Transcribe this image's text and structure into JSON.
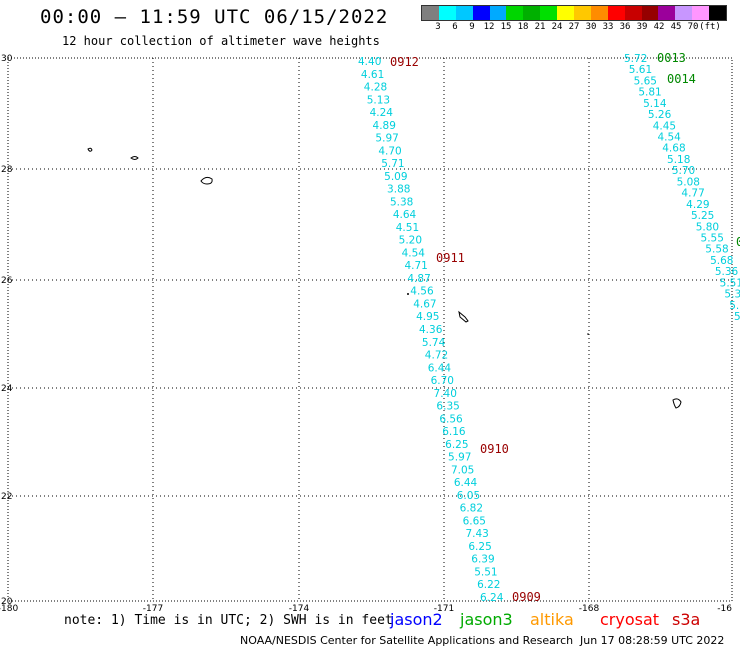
{
  "header": {
    "title": "00:00 — 11:59 UTC 06/15/2022",
    "subtitle": "12 hour collection of altimeter wave heights"
  },
  "legend": {
    "colors": [
      "#7f7f7f",
      "#00ffff",
      "#00c8ff",
      "#0000ff",
      "#00aaff",
      "#00d600",
      "#00b000",
      "#00e000",
      "#ffff00",
      "#ffc800",
      "#ff8c00",
      "#ff0000",
      "#c80000",
      "#960000",
      "#9b009b",
      "#c896ff",
      "#ff96ff",
      "#000000"
    ],
    "labels": [
      "3",
      "6",
      "9",
      "12",
      "15",
      "18",
      "21",
      "24",
      "27",
      "30",
      "33",
      "36",
      "39",
      "42",
      "45",
      "70",
      "(ft)"
    ]
  },
  "axes": {
    "x_ticks": [
      "-180",
      "-177",
      "-174",
      "-171",
      "-168",
      "-16"
    ],
    "y_ticks": [
      "30",
      "28",
      "26",
      "24",
      "22",
      "20"
    ]
  },
  "passes": [
    {
      "label": "0912",
      "color": "#990000"
    },
    {
      "label": "0911",
      "color": "#990000"
    },
    {
      "label": "0910",
      "color": "#990000"
    },
    {
      "label": "0909",
      "color": "#990000"
    },
    {
      "label": "0013",
      "color": "#008800"
    },
    {
      "label": "0014",
      "color": "#008800"
    }
  ],
  "tracks": {
    "west": [
      "4.40",
      "4.61",
      "4.28",
      "5.13",
      "4.24",
      "4.89",
      "5.97",
      "4.70",
      "5.71",
      "5.09",
      "3.88",
      "5.38",
      "4.64",
      "4.51",
      "5.20",
      "4.54",
      "4.71",
      "4.87",
      "4.56",
      "4.67",
      "4.95",
      "4.36",
      "5.74",
      "4.72",
      "6.44",
      "6.70",
      "7.40",
      "6.35",
      "6.56",
      "6.16",
      "6.25",
      "5.97",
      "7.05",
      "6.44",
      "6.05",
      "6.82",
      "6.65",
      "7.43",
      "6.25",
      "6.39",
      "5.51",
      "6.22",
      "6.24"
    ],
    "east": [
      "5.72",
      "5.61",
      "5.65",
      "5.81",
      "5.14",
      "5.26",
      "4.45",
      "4.54",
      "4.68",
      "5.18",
      "5.70",
      "5.08",
      "4.77",
      "4.29",
      "5.25",
      "5.80",
      "5.55",
      "5.58",
      "5.68",
      "5.36",
      "5.51",
      "5.3",
      "5.",
      "5"
    ]
  },
  "footer": {
    "note": "note: 1) Time is in UTC; 2) SWH is in feet",
    "satellites": [
      {
        "name": "jason2",
        "color": "#0000ff"
      },
      {
        "name": "jason3",
        "color": "#00aa00"
      },
      {
        "name": "altika",
        "color": "#ff9900"
      },
      {
        "name": "cryosat",
        "color": "#ff0000"
      },
      {
        "name": "s3a",
        "color": "#cc0000"
      }
    ],
    "credit": "NOAA/NESDIS Center for Satellite Applications and Research",
    "timestamp": "Jun 17 08:28:59 UTC 2022"
  }
}
